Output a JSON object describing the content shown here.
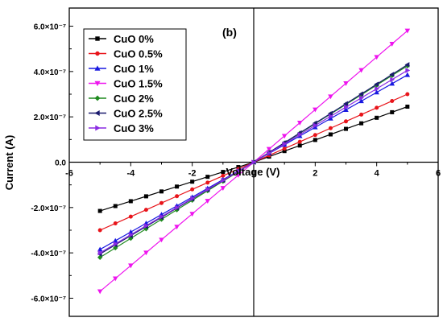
{
  "chart_data": {
    "type": "line",
    "panel_label": "(b)",
    "xlabel": "Voltage (V)",
    "ylabel": "Current (A)",
    "xlim": [
      -6,
      6
    ],
    "ylim": [
      -6.8e-07,
      6.8e-07
    ],
    "x_ticks": [
      -6,
      -4,
      -2,
      0,
      2,
      4,
      6
    ],
    "x_tick_labels": [
      "-6",
      "-4",
      "-2",
      "0",
      "2",
      "4",
      "6"
    ],
    "y_ticks": [
      -6e-07,
      -4e-07,
      -2e-07,
      0,
      2e-07,
      4e-07,
      6e-07
    ],
    "y_tick_labels": [
      "-6.0×10⁻⁷",
      "-4.0×10⁻⁷",
      "-2.0×10⁻⁷",
      "0.0",
      "2.0×10⁻⁷",
      "4.0×10⁻⁷",
      "6.0×10⁻⁷"
    ],
    "grid": false,
    "legend_position": "top-left",
    "x": [
      -5,
      -4.5,
      -4,
      -3.5,
      -3,
      -2.5,
      -2,
      -1.5,
      -1,
      -0.5,
      0,
      0.5,
      1,
      1.5,
      2,
      2.5,
      3,
      3.5,
      4,
      4.5,
      5
    ],
    "series": [
      {
        "name": "CuO 0%",
        "color": "#000000",
        "marker": "square",
        "neg_end": -2.15e-07,
        "pos_end": 2.45e-07
      },
      {
        "name": "CuO 0.5%",
        "color": "#e8141a",
        "marker": "circle",
        "neg_end": -3e-07,
        "pos_end": 3e-07
      },
      {
        "name": "CuO 1%",
        "color": "#1818e0",
        "marker": "triangle-up",
        "neg_end": -3.85e-07,
        "pos_end": 3.85e-07
      },
      {
        "name": "CuO 1.5%",
        "color": "#ee14ee",
        "marker": "triangle-down",
        "neg_end": -5.7e-07,
        "pos_end": 5.8e-07
      },
      {
        "name": "CuO 2%",
        "color": "#1e8a1e",
        "marker": "diamond",
        "neg_end": -4.2e-07,
        "pos_end": 4.25e-07
      },
      {
        "name": "CuO 2.5%",
        "color": "#1a1a6e",
        "marker": "triangle-left",
        "neg_end": -4.05e-07,
        "pos_end": 4.3e-07
      },
      {
        "name": "CuO 3%",
        "color": "#8a2be2",
        "marker": "triangle-right",
        "neg_end": -4e-07,
        "pos_end": 4.05e-07
      }
    ]
  }
}
